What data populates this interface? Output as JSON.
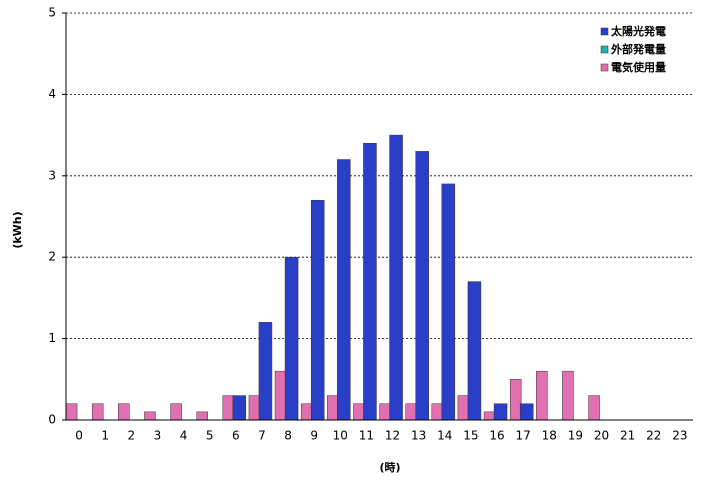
{
  "chart_data": {
    "type": "bar",
    "y_label": "(kWh)",
    "x_label": "(時)",
    "categories": [
      "0",
      "1",
      "2",
      "3",
      "4",
      "5",
      "6",
      "7",
      "8",
      "9",
      "10",
      "11",
      "12",
      "13",
      "14",
      "15",
      "16",
      "17",
      "18",
      "19",
      "20",
      "21",
      "22",
      "23"
    ],
    "series": [
      {
        "name": "太陽光発電",
        "color": "#2a3fc8",
        "values": [
          0,
          0,
          0,
          0,
          0,
          0,
          0.3,
          1.2,
          2.0,
          2.7,
          3.2,
          3.4,
          3.5,
          3.3,
          2.9,
          1.7,
          0.2,
          0.2,
          0,
          0,
          0,
          0,
          0,
          0
        ]
      },
      {
        "name": "外部発電量",
        "color": "#20b0b8",
        "values": [
          0,
          0,
          0,
          0,
          0,
          0,
          0,
          0,
          0,
          0,
          0,
          0,
          0,
          0,
          0,
          0,
          0,
          0,
          0,
          0,
          0,
          0,
          0,
          0
        ]
      },
      {
        "name": "電気使用量",
        "color": "#e070b0",
        "values": [
          0.2,
          0.2,
          0.2,
          0.1,
          0.2,
          0.1,
          0.3,
          0.3,
          0.6,
          0.2,
          0.3,
          0.2,
          0.2,
          0.2,
          0.2,
          0.3,
          0.1,
          0.5,
          0.6,
          0.6,
          0.3,
          0,
          0,
          0
        ]
      }
    ],
    "ylim": [
      0,
      5
    ],
    "yticks": [
      0,
      1,
      2,
      3,
      4,
      5
    ],
    "grid": true
  }
}
